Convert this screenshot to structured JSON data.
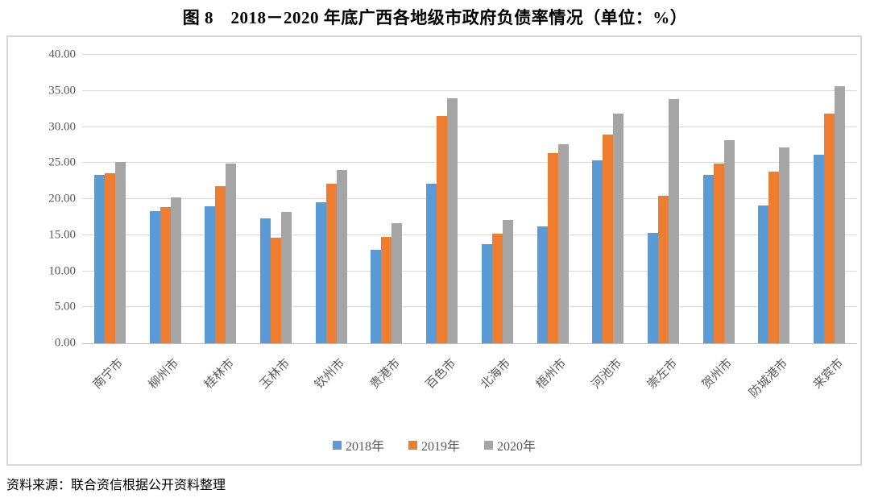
{
  "title": "图 8　2018－2020 年底广西各地级市政府负债率情况（单位：%）",
  "source_note": "资料来源：联合资信根据公开资料整理",
  "colors": {
    "series_2018": "#5B9BD5",
    "series_2019": "#ED7D31",
    "series_2020": "#A5A5A5",
    "gridline": "#D9D9D9",
    "axis_text": "#595959"
  },
  "chart_data": {
    "type": "bar",
    "title": "图 8　2018－2020 年底广西各地级市政府负债率情况（单位：%）",
    "xlabel": "",
    "ylabel": "",
    "ylim": [
      0,
      40
    ],
    "yticks": [
      "0.00",
      "5.00",
      "10.00",
      "15.00",
      "20.00",
      "25.00",
      "30.00",
      "35.00",
      "40.00"
    ],
    "grid": true,
    "legend_position": "bottom",
    "categories": [
      "南宁市",
      "柳州市",
      "桂林市",
      "玉林市",
      "钦州市",
      "贵港市",
      "百色市",
      "北海市",
      "梧州市",
      "河池市",
      "崇左市",
      "贺州市",
      "防城港市",
      "来宾市"
    ],
    "series": [
      {
        "name": "2018年",
        "color": "#5B9BD5",
        "values": [
          23.3,
          18.3,
          19.0,
          17.3,
          19.5,
          13.0,
          22.1,
          13.7,
          16.2,
          25.4,
          15.3,
          23.4,
          19.1,
          26.2
        ]
      },
      {
        "name": "2019年",
        "color": "#ED7D31",
        "values": [
          23.6,
          18.9,
          21.8,
          14.6,
          22.1,
          14.8,
          31.5,
          15.2,
          26.4,
          28.9,
          20.4,
          24.9,
          23.8,
          31.8
        ]
      },
      {
        "name": "2020年",
        "color": "#A5A5A5",
        "values": [
          25.1,
          20.2,
          24.9,
          18.2,
          24.0,
          16.7,
          34.0,
          17.1,
          27.6,
          31.8,
          33.9,
          28.2,
          27.1,
          35.6
        ]
      }
    ]
  }
}
